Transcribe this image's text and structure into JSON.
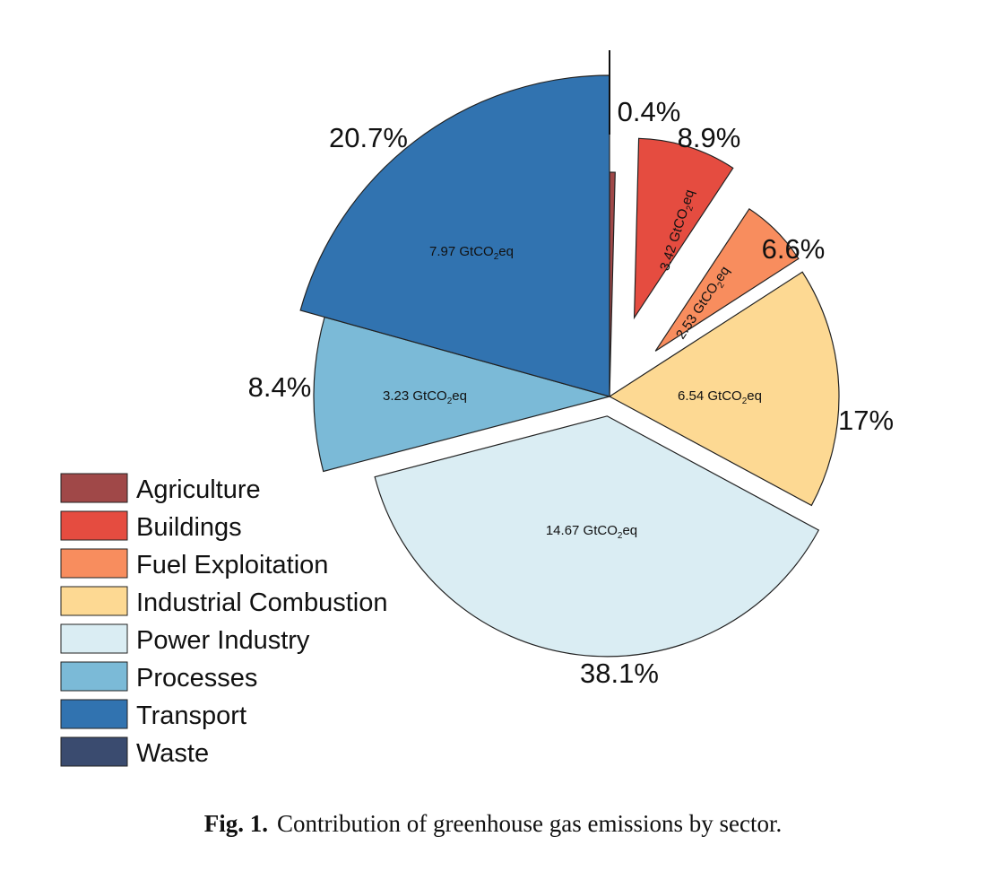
{
  "chart_data": {
    "type": "pie",
    "unit_label": "GtCO₂eq",
    "slices": [
      {
        "name": "Agriculture",
        "percent": 0.4,
        "percent_label": "0.4%",
        "value": null,
        "color": "#a04848"
      },
      {
        "name": "Buildings",
        "percent": 8.9,
        "percent_label": "8.9%",
        "value": 3.42,
        "value_label": "3.42",
        "color": "#e54c40"
      },
      {
        "name": "Fuel Exploitation",
        "percent": 6.6,
        "percent_label": "6.6%",
        "value": 2.53,
        "value_label": "2.53",
        "color": "#f88d5e"
      },
      {
        "name": "Industrial Combustion",
        "percent": 17,
        "percent_label": "17%",
        "value": 6.54,
        "value_label": "6.54",
        "color": "#fdd993"
      },
      {
        "name": "Power Industry",
        "percent": 38.1,
        "percent_label": "38.1%",
        "value": 14.67,
        "value_label": "14.67",
        "color": "#daedf3"
      },
      {
        "name": "Processes",
        "percent": 8.4,
        "percent_label": "8.4%",
        "value": 3.23,
        "value_label": "3.23",
        "color": "#7bbad7"
      },
      {
        "name": "Transport",
        "percent": 20.7,
        "percent_label": "20.7%",
        "value": 7.97,
        "value_label": "7.97",
        "color": "#3173b0"
      },
      {
        "name": "Waste",
        "percent": 0,
        "percent_label": "",
        "value": null,
        "color": "#3a4b6f"
      }
    ],
    "legend": [
      "Agriculture",
      "Buildings",
      "Fuel Exploitation",
      "Industrial Combustion",
      "Power Industry",
      "Processes",
      "Transport",
      "Waste"
    ],
    "legend_position": "bottom-left"
  },
  "caption": {
    "label": "Fig. 1.",
    "text": "Contribution of greenhouse gas emissions by sector."
  }
}
